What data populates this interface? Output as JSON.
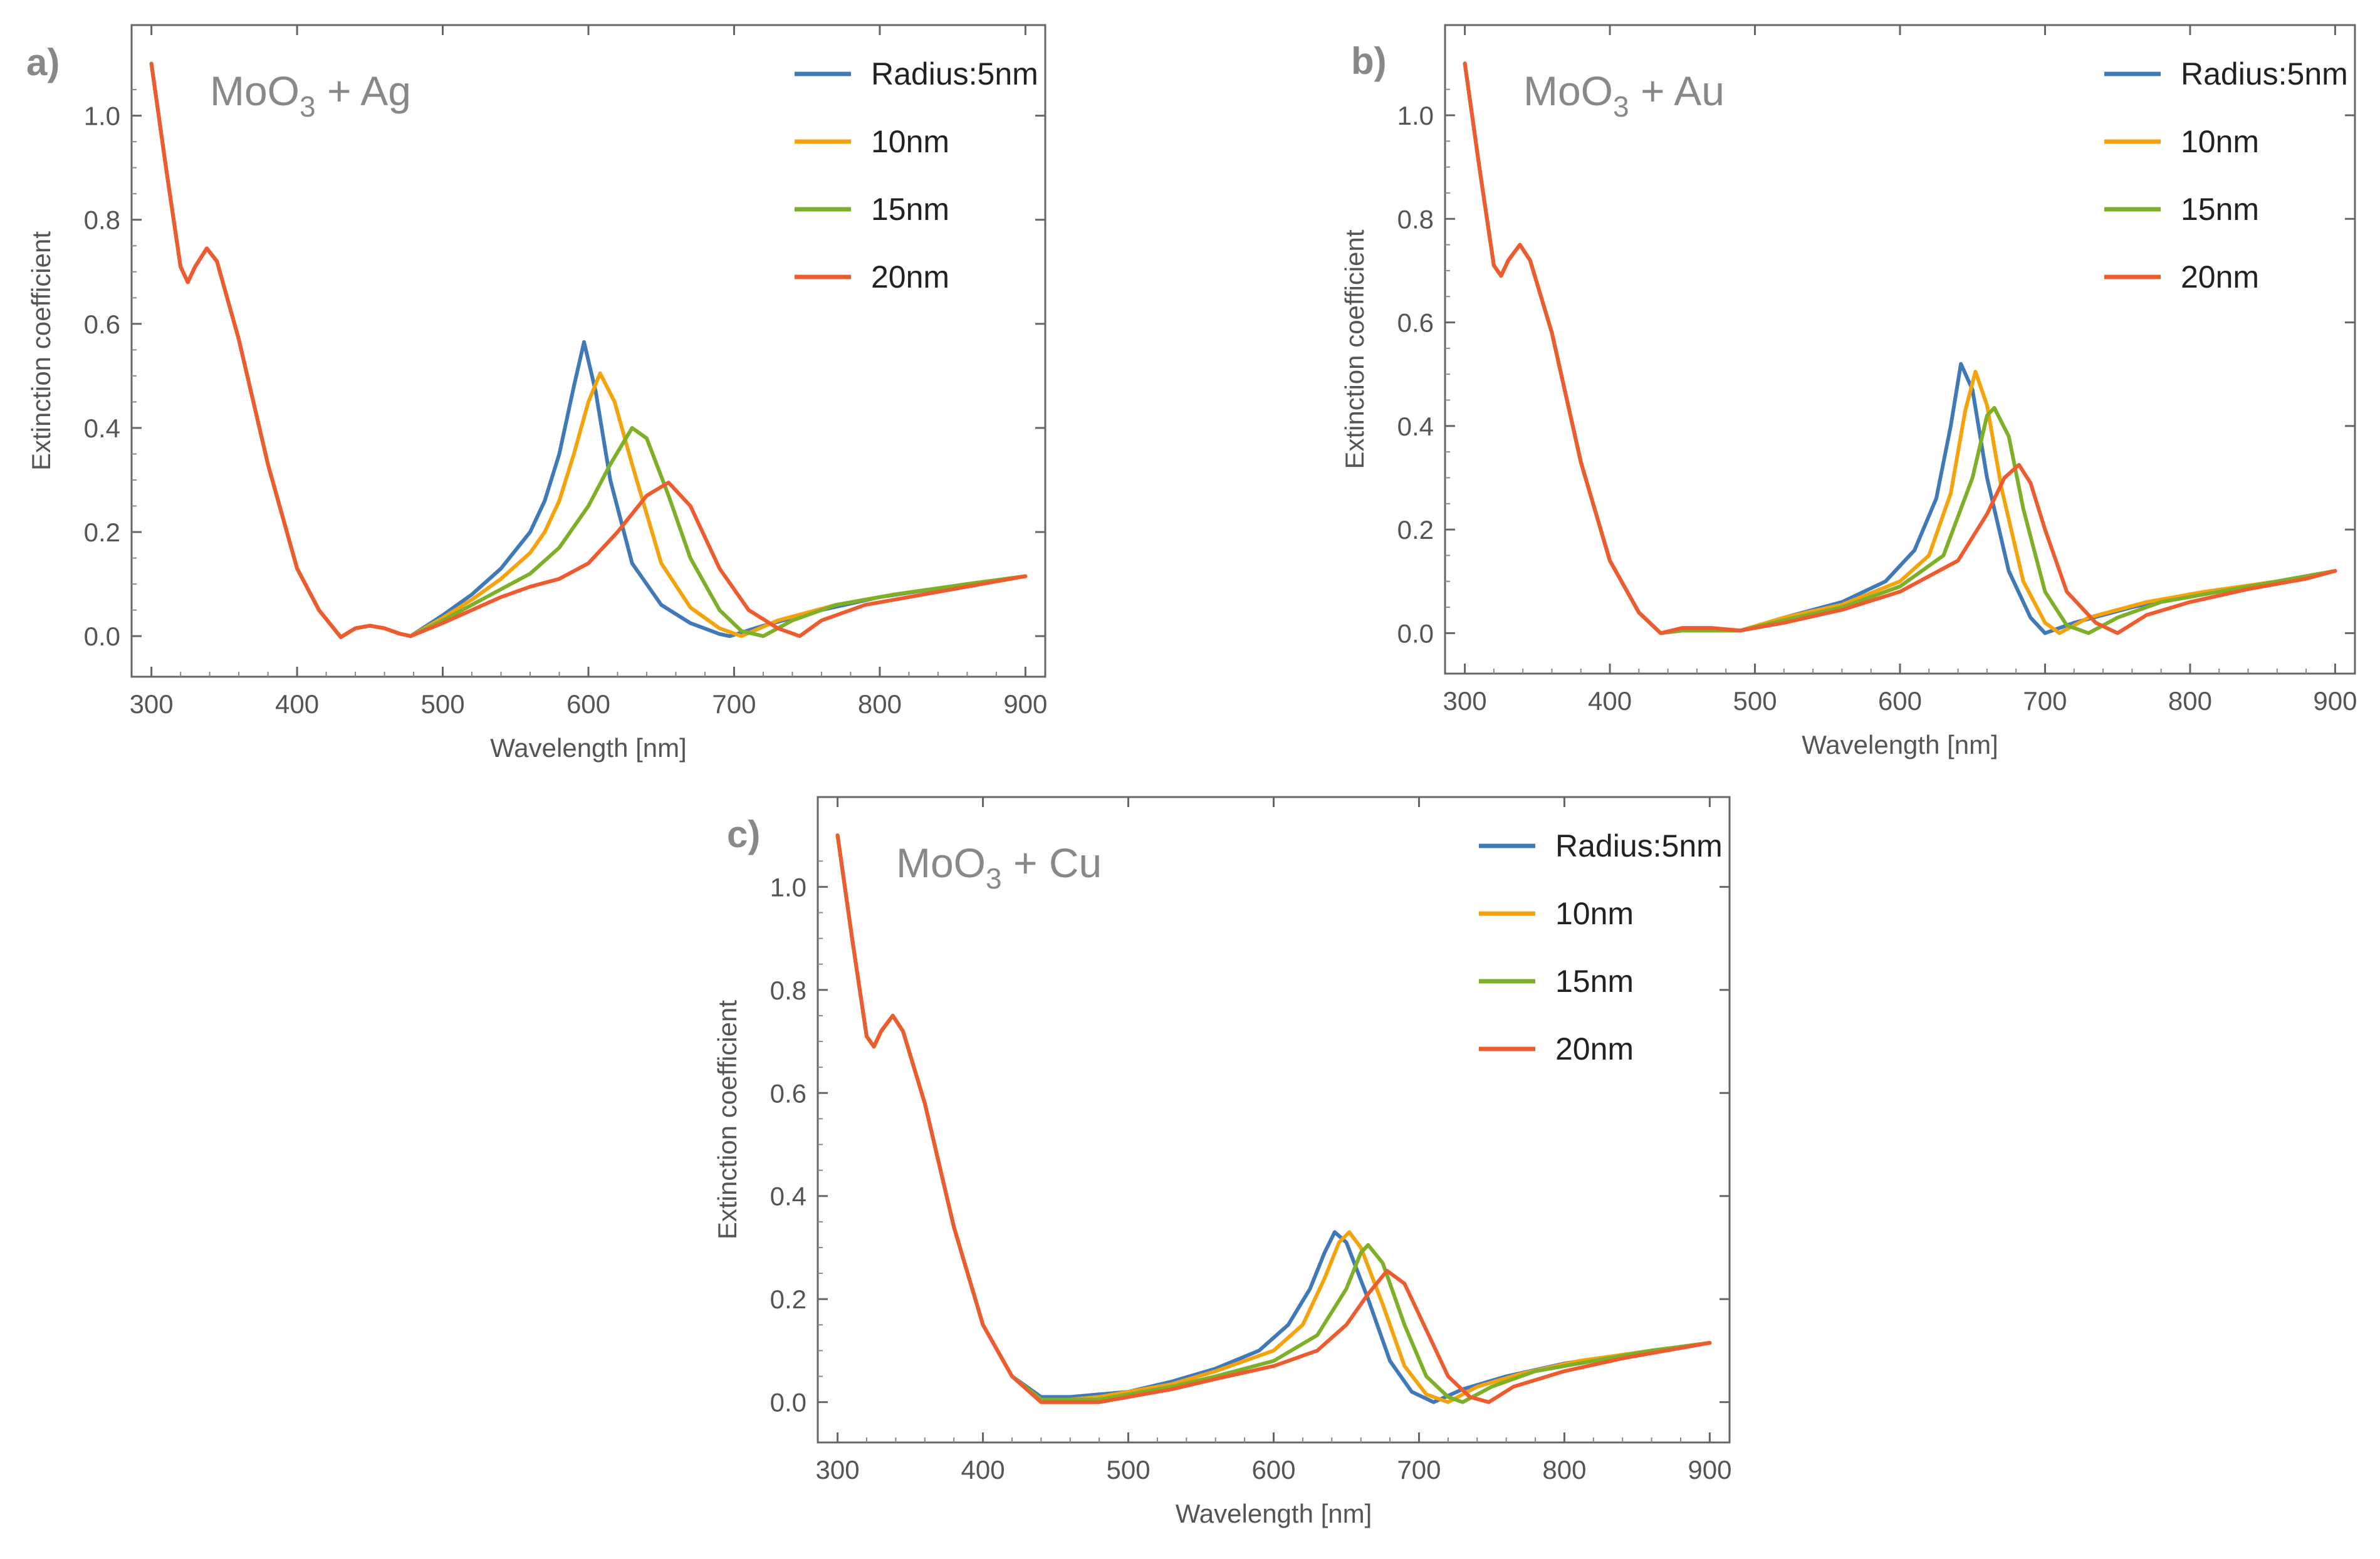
{
  "chart_data": [
    {
      "type": "line",
      "panel_label": "a)",
      "title": {
        "base": "MoO",
        "subscript": "3",
        "rest": " + Ag"
      },
      "xlabel": "Wavelength [nm]",
      "ylabel": "Extinction coefficient",
      "xlim": [
        295,
        905
      ],
      "ylim": [
        -0.06,
        1.15
      ],
      "xticks": [
        300,
        400,
        500,
        600,
        700,
        800,
        900
      ],
      "yticks": [
        "0.0",
        "0.2",
        "0.4",
        "0.6",
        "0.8",
        "1.0"
      ],
      "grid": false,
      "legend_position": "top-right",
      "series": [
        {
          "name": "Radius:5nm",
          "color": "#3f79b8",
          "x": [
            300,
            310,
            320,
            325,
            330,
            338,
            345,
            360,
            380,
            400,
            415,
            430,
            440,
            450,
            460,
            470,
            478,
            500,
            520,
            540,
            560,
            570,
            580,
            590,
            597,
            605,
            615,
            630,
            650,
            670,
            690,
            697,
            720,
            760,
            800,
            860,
            900
          ],
          "y": [
            1.1,
            0.9,
            0.71,
            0.68,
            0.71,
            0.745,
            0.72,
            0.57,
            0.33,
            0.13,
            0.05,
            -0.002,
            0.015,
            0.02,
            0.015,
            0.005,
            0.0,
            0.04,
            0.08,
            0.13,
            0.2,
            0.26,
            0.35,
            0.48,
            0.565,
            0.47,
            0.3,
            0.14,
            0.06,
            0.025,
            0.004,
            0.0,
            0.02,
            0.05,
            0.075,
            0.1,
            0.115
          ]
        },
        {
          "name": "10nm",
          "color": "#f5a30d",
          "x": [
            300,
            310,
            320,
            325,
            330,
            338,
            345,
            360,
            380,
            400,
            415,
            430,
            440,
            450,
            460,
            470,
            478,
            500,
            520,
            540,
            560,
            570,
            580,
            590,
            600,
            608,
            618,
            630,
            650,
            670,
            690,
            705,
            730,
            770,
            810,
            860,
            900
          ],
          "y": [
            1.1,
            0.9,
            0.71,
            0.68,
            0.71,
            0.745,
            0.72,
            0.57,
            0.33,
            0.13,
            0.05,
            -0.002,
            0.015,
            0.02,
            0.015,
            0.005,
            0.0,
            0.035,
            0.07,
            0.11,
            0.16,
            0.2,
            0.26,
            0.35,
            0.45,
            0.505,
            0.45,
            0.33,
            0.14,
            0.055,
            0.015,
            0.0,
            0.03,
            0.06,
            0.08,
            0.1,
            0.115
          ]
        },
        {
          "name": "15nm",
          "color": "#7eaf28",
          "x": [
            300,
            310,
            320,
            325,
            330,
            338,
            345,
            360,
            380,
            400,
            415,
            430,
            440,
            450,
            460,
            470,
            478,
            500,
            520,
            540,
            560,
            580,
            600,
            615,
            630,
            640,
            655,
            670,
            690,
            705,
            720,
            740,
            770,
            810,
            860,
            900
          ],
          "y": [
            1.1,
            0.9,
            0.71,
            0.68,
            0.71,
            0.745,
            0.72,
            0.57,
            0.33,
            0.13,
            0.05,
            -0.002,
            0.015,
            0.02,
            0.015,
            0.005,
            0.0,
            0.03,
            0.06,
            0.09,
            0.12,
            0.17,
            0.25,
            0.33,
            0.4,
            0.38,
            0.27,
            0.15,
            0.05,
            0.01,
            0.0,
            0.03,
            0.06,
            0.08,
            0.1,
            0.115
          ]
        },
        {
          "name": "20nm",
          "color": "#ee5b2e",
          "x": [
            300,
            310,
            320,
            325,
            330,
            338,
            345,
            360,
            380,
            400,
            415,
            430,
            440,
            450,
            460,
            470,
            478,
            500,
            520,
            540,
            560,
            580,
            600,
            620,
            640,
            655,
            670,
            690,
            710,
            730,
            745,
            760,
            790,
            830,
            870,
            900
          ],
          "y": [
            1.1,
            0.9,
            0.71,
            0.68,
            0.71,
            0.745,
            0.72,
            0.57,
            0.33,
            0.13,
            0.05,
            -0.002,
            0.015,
            0.02,
            0.015,
            0.005,
            0.0,
            0.025,
            0.05,
            0.075,
            0.095,
            0.11,
            0.14,
            0.2,
            0.27,
            0.295,
            0.25,
            0.13,
            0.05,
            0.015,
            0.0,
            0.03,
            0.06,
            0.08,
            0.1,
            0.115
          ]
        }
      ]
    },
    {
      "type": "line",
      "panel_label": "b)",
      "title": {
        "base": "MoO",
        "subscript": "3",
        "rest": " + Au"
      },
      "xlabel": "Wavelength [nm]",
      "ylabel": "Extinction coefficient",
      "xlim": [
        295,
        905
      ],
      "ylim": [
        -0.06,
        1.15
      ],
      "xticks": [
        300,
        400,
        500,
        600,
        700,
        800,
        900
      ],
      "yticks": [
        "0.0",
        "0.2",
        "0.4",
        "0.6",
        "0.8",
        "1.0"
      ],
      "grid": false,
      "legend_position": "top-right",
      "series": [
        {
          "name": "Radius:5nm",
          "color": "#3f79b8",
          "x": [
            300,
            310,
            320,
            325,
            330,
            338,
            345,
            360,
            380,
            400,
            420,
            435,
            450,
            470,
            490,
            520,
            560,
            590,
            610,
            625,
            635,
            642,
            650,
            660,
            675,
            690,
            700,
            720,
            760,
            800,
            860,
            900
          ],
          "y": [
            1.1,
            0.9,
            0.71,
            0.69,
            0.72,
            0.75,
            0.72,
            0.58,
            0.33,
            0.14,
            0.04,
            0.0,
            0.005,
            0.005,
            0.005,
            0.03,
            0.06,
            0.1,
            0.16,
            0.26,
            0.4,
            0.52,
            0.47,
            0.3,
            0.12,
            0.03,
            0.0,
            0.02,
            0.05,
            0.075,
            0.1,
            0.12
          ]
        },
        {
          "name": "10nm",
          "color": "#f5a30d",
          "x": [
            300,
            310,
            320,
            325,
            330,
            338,
            345,
            360,
            380,
            400,
            420,
            435,
            450,
            470,
            490,
            520,
            560,
            600,
            620,
            635,
            645,
            652,
            660,
            670,
            685,
            700,
            710,
            730,
            770,
            810,
            860,
            900
          ],
          "y": [
            1.1,
            0.9,
            0.71,
            0.69,
            0.72,
            0.75,
            0.72,
            0.58,
            0.33,
            0.14,
            0.04,
            0.0,
            0.005,
            0.005,
            0.005,
            0.03,
            0.055,
            0.1,
            0.15,
            0.27,
            0.43,
            0.505,
            0.44,
            0.28,
            0.1,
            0.02,
            0.0,
            0.03,
            0.06,
            0.08,
            0.1,
            0.12
          ]
        },
        {
          "name": "15nm",
          "color": "#7eaf28",
          "x": [
            300,
            310,
            320,
            325,
            330,
            338,
            345,
            360,
            380,
            400,
            420,
            435,
            450,
            470,
            490,
            520,
            560,
            600,
            630,
            650,
            660,
            665,
            675,
            685,
            700,
            715,
            730,
            750,
            780,
            820,
            860,
            900
          ],
          "y": [
            1.1,
            0.9,
            0.71,
            0.69,
            0.72,
            0.75,
            0.72,
            0.58,
            0.33,
            0.14,
            0.04,
            0.0,
            0.005,
            0.005,
            0.005,
            0.025,
            0.05,
            0.09,
            0.15,
            0.3,
            0.42,
            0.435,
            0.38,
            0.24,
            0.08,
            0.015,
            0.0,
            0.03,
            0.06,
            0.08,
            0.1,
            0.12
          ]
        },
        {
          "name": "20nm",
          "color": "#ee5b2e",
          "x": [
            300,
            310,
            320,
            325,
            330,
            338,
            345,
            360,
            380,
            400,
            420,
            435,
            450,
            470,
            490,
            520,
            560,
            600,
            640,
            660,
            672,
            682,
            690,
            700,
            715,
            735,
            750,
            770,
            800,
            840,
            880,
            900
          ],
          "y": [
            1.1,
            0.9,
            0.71,
            0.69,
            0.72,
            0.75,
            0.72,
            0.58,
            0.33,
            0.14,
            0.04,
            0.0,
            0.01,
            0.01,
            0.005,
            0.02,
            0.045,
            0.08,
            0.14,
            0.23,
            0.3,
            0.325,
            0.29,
            0.2,
            0.08,
            0.02,
            0.0,
            0.035,
            0.06,
            0.085,
            0.105,
            0.12
          ]
        }
      ]
    },
    {
      "type": "line",
      "panel_label": "c)",
      "title": {
        "base": "MoO",
        "subscript": "3",
        "rest": " + Cu"
      },
      "xlabel": "Wavelength [nm]",
      "ylabel": "Extinction coefficient",
      "xlim": [
        295,
        905
      ],
      "ylim": [
        -0.06,
        1.15
      ],
      "xticks": [
        300,
        400,
        500,
        600,
        700,
        800,
        900
      ],
      "yticks": [
        "0.0",
        "0.2",
        "0.4",
        "0.6",
        "0.8",
        "1.0"
      ],
      "grid": false,
      "legend_position": "top-right",
      "series": [
        {
          "name": "Radius:5nm",
          "color": "#3f79b8",
          "x": [
            300,
            310,
            320,
            325,
            330,
            338,
            345,
            360,
            380,
            400,
            420,
            440,
            460,
            480,
            500,
            530,
            560,
            590,
            610,
            625,
            635,
            642,
            650,
            665,
            680,
            695,
            710,
            730,
            760,
            800,
            860,
            900
          ],
          "y": [
            1.1,
            0.9,
            0.71,
            0.69,
            0.72,
            0.75,
            0.72,
            0.58,
            0.34,
            0.15,
            0.05,
            0.01,
            0.01,
            0.015,
            0.02,
            0.04,
            0.065,
            0.1,
            0.15,
            0.22,
            0.29,
            0.33,
            0.31,
            0.2,
            0.08,
            0.02,
            0.0,
            0.025,
            0.05,
            0.075,
            0.1,
            0.115
          ]
        },
        {
          "name": "10nm",
          "color": "#f5a30d",
          "x": [
            300,
            310,
            320,
            325,
            330,
            338,
            345,
            360,
            380,
            400,
            420,
            440,
            460,
            480,
            500,
            530,
            560,
            600,
            620,
            635,
            645,
            652,
            660,
            675,
            690,
            705,
            720,
            740,
            770,
            810,
            860,
            900
          ],
          "y": [
            1.1,
            0.9,
            0.71,
            0.69,
            0.72,
            0.75,
            0.72,
            0.58,
            0.34,
            0.15,
            0.05,
            0.005,
            0.005,
            0.01,
            0.02,
            0.035,
            0.06,
            0.1,
            0.15,
            0.24,
            0.31,
            0.33,
            0.3,
            0.19,
            0.07,
            0.015,
            0.0,
            0.03,
            0.055,
            0.08,
            0.1,
            0.115
          ]
        },
        {
          "name": "15nm",
          "color": "#7eaf28",
          "x": [
            300,
            310,
            320,
            325,
            330,
            338,
            345,
            360,
            380,
            400,
            420,
            440,
            460,
            480,
            500,
            530,
            560,
            600,
            630,
            650,
            660,
            665,
            675,
            690,
            705,
            720,
            730,
            750,
            780,
            820,
            860,
            900
          ],
          "y": [
            1.1,
            0.9,
            0.71,
            0.69,
            0.72,
            0.75,
            0.72,
            0.58,
            0.34,
            0.15,
            0.05,
            0.005,
            0.005,
            0.005,
            0.015,
            0.03,
            0.05,
            0.08,
            0.13,
            0.22,
            0.29,
            0.305,
            0.27,
            0.15,
            0.05,
            0.01,
            0.0,
            0.03,
            0.06,
            0.08,
            0.1,
            0.115
          ]
        },
        {
          "name": "20nm",
          "color": "#ee5b2e",
          "x": [
            300,
            310,
            320,
            325,
            330,
            338,
            345,
            360,
            380,
            400,
            420,
            440,
            460,
            480,
            500,
            530,
            560,
            600,
            630,
            650,
            665,
            678,
            690,
            705,
            720,
            735,
            748,
            765,
            800,
            840,
            880,
            900
          ],
          "y": [
            1.1,
            0.9,
            0.71,
            0.69,
            0.72,
            0.75,
            0.72,
            0.58,
            0.34,
            0.15,
            0.05,
            0.0,
            0.0,
            0.0,
            0.01,
            0.025,
            0.045,
            0.07,
            0.1,
            0.15,
            0.21,
            0.255,
            0.23,
            0.14,
            0.05,
            0.01,
            0.0,
            0.03,
            0.06,
            0.085,
            0.105,
            0.115
          ]
        }
      ]
    }
  ]
}
